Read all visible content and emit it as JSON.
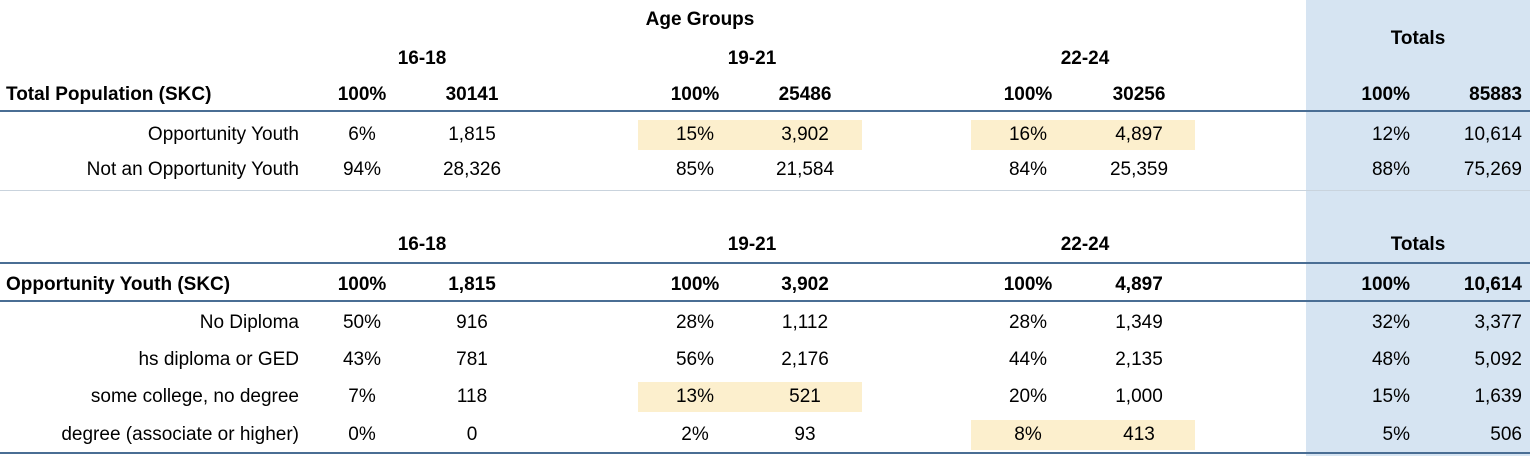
{
  "table1": {
    "super_header": "Age Groups",
    "groups": [
      "16-18",
      "19-21",
      "22-24"
    ],
    "totals_label": "Totals",
    "header_row": {
      "label": "Total Population (SKC)",
      "values": [
        "100%",
        "30141",
        "100%",
        "25486",
        "100%",
        "30256",
        "100%",
        "85883"
      ]
    },
    "rows": [
      {
        "label": "Opportunity Youth",
        "values": [
          "6%",
          "1,815",
          "15%",
          "3,902",
          "16%",
          "4,897",
          "12%",
          "10,614"
        ]
      },
      {
        "label": "Not an Opportunity Youth",
        "values": [
          "94%",
          "28,326",
          "85%",
          "21,584",
          "84%",
          "25,359",
          "88%",
          "75,269"
        ]
      }
    ]
  },
  "table2": {
    "groups": [
      "16-18",
      "19-21",
      "22-24"
    ],
    "totals_label": "Totals",
    "header_row": {
      "label": "Opportunity Youth (SKC)",
      "values": [
        "100%",
        "1,815",
        "100%",
        "3,902",
        "100%",
        "4,897",
        "100%",
        "10,614"
      ]
    },
    "rows": [
      {
        "label": "No Diploma",
        "values": [
          "50%",
          "916",
          "28%",
          "1,112",
          "28%",
          "1,349",
          "32%",
          "3,377"
        ]
      },
      {
        "label": "hs diploma or GED",
        "values": [
          "43%",
          "781",
          "56%",
          "2,176",
          "44%",
          "2,135",
          "48%",
          "5,092"
        ]
      },
      {
        "label": "some college, no degree",
        "values": [
          "7%",
          "118",
          "13%",
          "521",
          "20%",
          "1,000",
          "15%",
          "1,639"
        ]
      },
      {
        "label": "degree (associate or higher)",
        "values": [
          "0%",
          "0",
          "2%",
          "93",
          "8%",
          "413",
          "5%",
          "506"
        ]
      }
    ]
  },
  "colors": {
    "highlight": "#fcefcd",
    "totals_fill": "#d6e4f2",
    "rule": "#4a6e94"
  }
}
